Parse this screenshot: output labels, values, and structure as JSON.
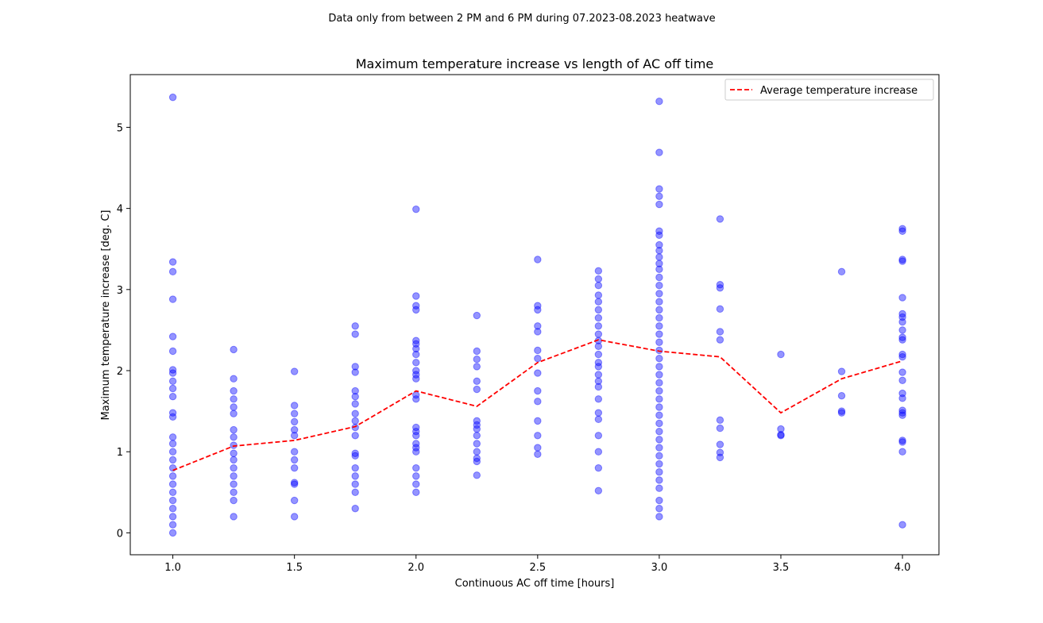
{
  "chart_data": {
    "type": "scatter",
    "suptitle": "Data only from between 2 PM and 6 PM during 07.2023-08.2023 heatwave",
    "title": "Maximum temperature increase vs length of AC off time",
    "xlabel": "Continuous AC off time [hours]",
    "ylabel": "Maximum temperature increase [deg. C]",
    "xlim": [
      0.825,
      4.15
    ],
    "ylim": [
      -0.27,
      5.65
    ],
    "xticks": [
      1.0,
      1.5,
      2.0,
      2.5,
      3.0,
      3.5,
      4.0
    ],
    "xtick_labels": [
      "1.0",
      "1.5",
      "2.0",
      "2.5",
      "3.0",
      "3.5",
      "4.0"
    ],
    "yticks": [
      0,
      1,
      2,
      3,
      4,
      5
    ],
    "ytick_labels": [
      "0",
      "1",
      "2",
      "3",
      "4",
      "5"
    ],
    "grid": false,
    "legend": {
      "placement": "top-right",
      "entries": [
        "Average temperature increase"
      ]
    },
    "colors": {
      "points": "#0000ff",
      "average_line": "#ff0000"
    },
    "series": [
      {
        "kind": "scatter",
        "points": [
          [
            1.0,
            5.37
          ],
          [
            1.0,
            3.34
          ],
          [
            1.0,
            3.22
          ],
          [
            1.0,
            2.88
          ],
          [
            1.0,
            2.42
          ],
          [
            1.0,
            2.24
          ],
          [
            1.0,
            2.01
          ],
          [
            1.0,
            1.97
          ],
          [
            1.0,
            1.87
          ],
          [
            1.0,
            1.78
          ],
          [
            1.0,
            1.68
          ],
          [
            1.0,
            1.48
          ],
          [
            1.0,
            1.43
          ],
          [
            1.0,
            1.18
          ],
          [
            1.0,
            1.1
          ],
          [
            1.0,
            1.0
          ],
          [
            1.0,
            0.9
          ],
          [
            1.0,
            0.8
          ],
          [
            1.0,
            0.7
          ],
          [
            1.0,
            0.6
          ],
          [
            1.0,
            0.5
          ],
          [
            1.0,
            0.4
          ],
          [
            1.0,
            0.3
          ],
          [
            1.0,
            0.2
          ],
          [
            1.0,
            0.1
          ],
          [
            1.0,
            0.0
          ],
          [
            1.25,
            2.26
          ],
          [
            1.25,
            1.9
          ],
          [
            1.25,
            1.75
          ],
          [
            1.25,
            1.65
          ],
          [
            1.25,
            1.55
          ],
          [
            1.25,
            1.47
          ],
          [
            1.25,
            1.27
          ],
          [
            1.25,
            1.18
          ],
          [
            1.25,
            1.08
          ],
          [
            1.25,
            0.98
          ],
          [
            1.25,
            0.9
          ],
          [
            1.25,
            0.8
          ],
          [
            1.25,
            0.7
          ],
          [
            1.25,
            0.6
          ],
          [
            1.25,
            0.5
          ],
          [
            1.25,
            0.4
          ],
          [
            1.25,
            0.2
          ],
          [
            1.5,
            1.99
          ],
          [
            1.5,
            1.57
          ],
          [
            1.5,
            1.47
          ],
          [
            1.5,
            1.37
          ],
          [
            1.5,
            1.27
          ],
          [
            1.5,
            1.2
          ],
          [
            1.5,
            1.0
          ],
          [
            1.5,
            0.9
          ],
          [
            1.5,
            0.8
          ],
          [
            1.5,
            0.62
          ],
          [
            1.5,
            0.6
          ],
          [
            1.5,
            0.4
          ],
          [
            1.5,
            0.2
          ],
          [
            1.75,
            2.55
          ],
          [
            1.75,
            2.45
          ],
          [
            1.75,
            2.05
          ],
          [
            1.75,
            1.98
          ],
          [
            1.75,
            1.75
          ],
          [
            1.75,
            1.68
          ],
          [
            1.75,
            1.59
          ],
          [
            1.75,
            1.47
          ],
          [
            1.75,
            1.38
          ],
          [
            1.75,
            1.3
          ],
          [
            1.75,
            1.2
          ],
          [
            1.75,
            0.98
          ],
          [
            1.75,
            0.95
          ],
          [
            1.75,
            0.8
          ],
          [
            1.75,
            0.7
          ],
          [
            1.75,
            0.6
          ],
          [
            1.75,
            0.5
          ],
          [
            1.75,
            0.3
          ],
          [
            2.0,
            3.99
          ],
          [
            2.0,
            2.92
          ],
          [
            2.0,
            2.8
          ],
          [
            2.0,
            2.75
          ],
          [
            2.0,
            2.37
          ],
          [
            2.0,
            2.33
          ],
          [
            2.0,
            2.27
          ],
          [
            2.0,
            2.2
          ],
          [
            2.0,
            2.1
          ],
          [
            2.0,
            2.0
          ],
          [
            2.0,
            1.95
          ],
          [
            2.0,
            1.9
          ],
          [
            2.0,
            1.7
          ],
          [
            2.0,
            1.65
          ],
          [
            2.0,
            1.3
          ],
          [
            2.0,
            1.25
          ],
          [
            2.0,
            1.2
          ],
          [
            2.0,
            1.1
          ],
          [
            2.0,
            1.05
          ],
          [
            2.0,
            1.0
          ],
          [
            2.0,
            0.8
          ],
          [
            2.0,
            0.7
          ],
          [
            2.0,
            0.6
          ],
          [
            2.0,
            0.5
          ],
          [
            2.25,
            2.68
          ],
          [
            2.25,
            2.24
          ],
          [
            2.25,
            2.14
          ],
          [
            2.25,
            2.05
          ],
          [
            2.25,
            1.87
          ],
          [
            2.25,
            1.77
          ],
          [
            2.25,
            1.38
          ],
          [
            2.25,
            1.33
          ],
          [
            2.25,
            1.28
          ],
          [
            2.25,
            1.2
          ],
          [
            2.25,
            1.1
          ],
          [
            2.25,
            1.0
          ],
          [
            2.25,
            0.92
          ],
          [
            2.25,
            0.88
          ],
          [
            2.25,
            0.71
          ],
          [
            2.5,
            3.37
          ],
          [
            2.5,
            2.8
          ],
          [
            2.5,
            2.75
          ],
          [
            2.5,
            2.55
          ],
          [
            2.5,
            2.48
          ],
          [
            2.5,
            2.25
          ],
          [
            2.5,
            2.15
          ],
          [
            2.5,
            1.97
          ],
          [
            2.5,
            1.75
          ],
          [
            2.5,
            1.62
          ],
          [
            2.5,
            1.38
          ],
          [
            2.5,
            1.2
          ],
          [
            2.5,
            1.05
          ],
          [
            2.5,
            0.97
          ],
          [
            2.75,
            3.23
          ],
          [
            2.75,
            3.13
          ],
          [
            2.75,
            3.05
          ],
          [
            2.75,
            2.93
          ],
          [
            2.75,
            2.85
          ],
          [
            2.75,
            2.75
          ],
          [
            2.75,
            2.65
          ],
          [
            2.75,
            2.55
          ],
          [
            2.75,
            2.45
          ],
          [
            2.75,
            2.37
          ],
          [
            2.75,
            2.3
          ],
          [
            2.75,
            2.2
          ],
          [
            2.75,
            2.1
          ],
          [
            2.75,
            2.05
          ],
          [
            2.75,
            1.95
          ],
          [
            2.75,
            1.87
          ],
          [
            2.75,
            1.8
          ],
          [
            2.75,
            1.65
          ],
          [
            2.75,
            1.48
          ],
          [
            2.75,
            1.4
          ],
          [
            2.75,
            1.2
          ],
          [
            2.75,
            1.0
          ],
          [
            2.75,
            0.8
          ],
          [
            2.75,
            0.52
          ],
          [
            3.0,
            5.32
          ],
          [
            3.0,
            4.69
          ],
          [
            3.0,
            4.24
          ],
          [
            3.0,
            4.15
          ],
          [
            3.0,
            4.05
          ],
          [
            3.0,
            3.72
          ],
          [
            3.0,
            3.67
          ],
          [
            3.0,
            3.55
          ],
          [
            3.0,
            3.48
          ],
          [
            3.0,
            3.4
          ],
          [
            3.0,
            3.32
          ],
          [
            3.0,
            3.25
          ],
          [
            3.0,
            3.15
          ],
          [
            3.0,
            3.05
          ],
          [
            3.0,
            2.95
          ],
          [
            3.0,
            2.85
          ],
          [
            3.0,
            2.75
          ],
          [
            3.0,
            2.65
          ],
          [
            3.0,
            2.55
          ],
          [
            3.0,
            2.45
          ],
          [
            3.0,
            2.35
          ],
          [
            3.0,
            2.25
          ],
          [
            3.0,
            2.15
          ],
          [
            3.0,
            2.05
          ],
          [
            3.0,
            1.95
          ],
          [
            3.0,
            1.85
          ],
          [
            3.0,
            1.75
          ],
          [
            3.0,
            1.65
          ],
          [
            3.0,
            1.55
          ],
          [
            3.0,
            1.45
          ],
          [
            3.0,
            1.35
          ],
          [
            3.0,
            1.25
          ],
          [
            3.0,
            1.15
          ],
          [
            3.0,
            1.05
          ],
          [
            3.0,
            0.95
          ],
          [
            3.0,
            0.85
          ],
          [
            3.0,
            0.75
          ],
          [
            3.0,
            0.65
          ],
          [
            3.0,
            0.55
          ],
          [
            3.0,
            0.4
          ],
          [
            3.0,
            0.3
          ],
          [
            3.0,
            0.2
          ],
          [
            3.25,
            3.87
          ],
          [
            3.25,
            3.06
          ],
          [
            3.25,
            3.02
          ],
          [
            3.25,
            2.76
          ],
          [
            3.25,
            2.48
          ],
          [
            3.25,
            2.38
          ],
          [
            3.25,
            1.39
          ],
          [
            3.25,
            1.29
          ],
          [
            3.25,
            1.09
          ],
          [
            3.25,
            0.99
          ],
          [
            3.25,
            0.93
          ],
          [
            3.5,
            2.2
          ],
          [
            3.5,
            1.28
          ],
          [
            3.5,
            1.21
          ],
          [
            3.5,
            1.2
          ],
          [
            3.75,
            3.22
          ],
          [
            3.75,
            1.99
          ],
          [
            3.75,
            1.69
          ],
          [
            3.75,
            1.5
          ],
          [
            3.75,
            1.48
          ],
          [
            4.0,
            3.75
          ],
          [
            4.0,
            3.72
          ],
          [
            4.0,
            3.37
          ],
          [
            4.0,
            3.35
          ],
          [
            4.0,
            2.9
          ],
          [
            4.0,
            2.7
          ],
          [
            4.0,
            2.66
          ],
          [
            4.0,
            2.6
          ],
          [
            4.0,
            2.5
          ],
          [
            4.0,
            2.41
          ],
          [
            4.0,
            2.38
          ],
          [
            4.0,
            2.2
          ],
          [
            4.0,
            2.17
          ],
          [
            4.0,
            1.98
          ],
          [
            4.0,
            1.88
          ],
          [
            4.0,
            1.72
          ],
          [
            4.0,
            1.66
          ],
          [
            4.0,
            1.51
          ],
          [
            4.0,
            1.48
          ],
          [
            4.0,
            1.45
          ],
          [
            4.0,
            1.14
          ],
          [
            4.0,
            1.12
          ],
          [
            4.0,
            1.0
          ],
          [
            4.0,
            0.1
          ]
        ]
      },
      {
        "name": "Average temperature increase",
        "kind": "line",
        "x": [
          1.0,
          1.25,
          1.5,
          1.75,
          2.0,
          2.25,
          2.5,
          2.75,
          3.0,
          3.25,
          3.5,
          3.75,
          4.0
        ],
        "values": [
          0.77,
          1.07,
          1.14,
          1.31,
          1.75,
          1.56,
          2.1,
          2.38,
          2.24,
          2.17,
          1.48,
          1.9,
          2.12
        ]
      }
    ]
  }
}
